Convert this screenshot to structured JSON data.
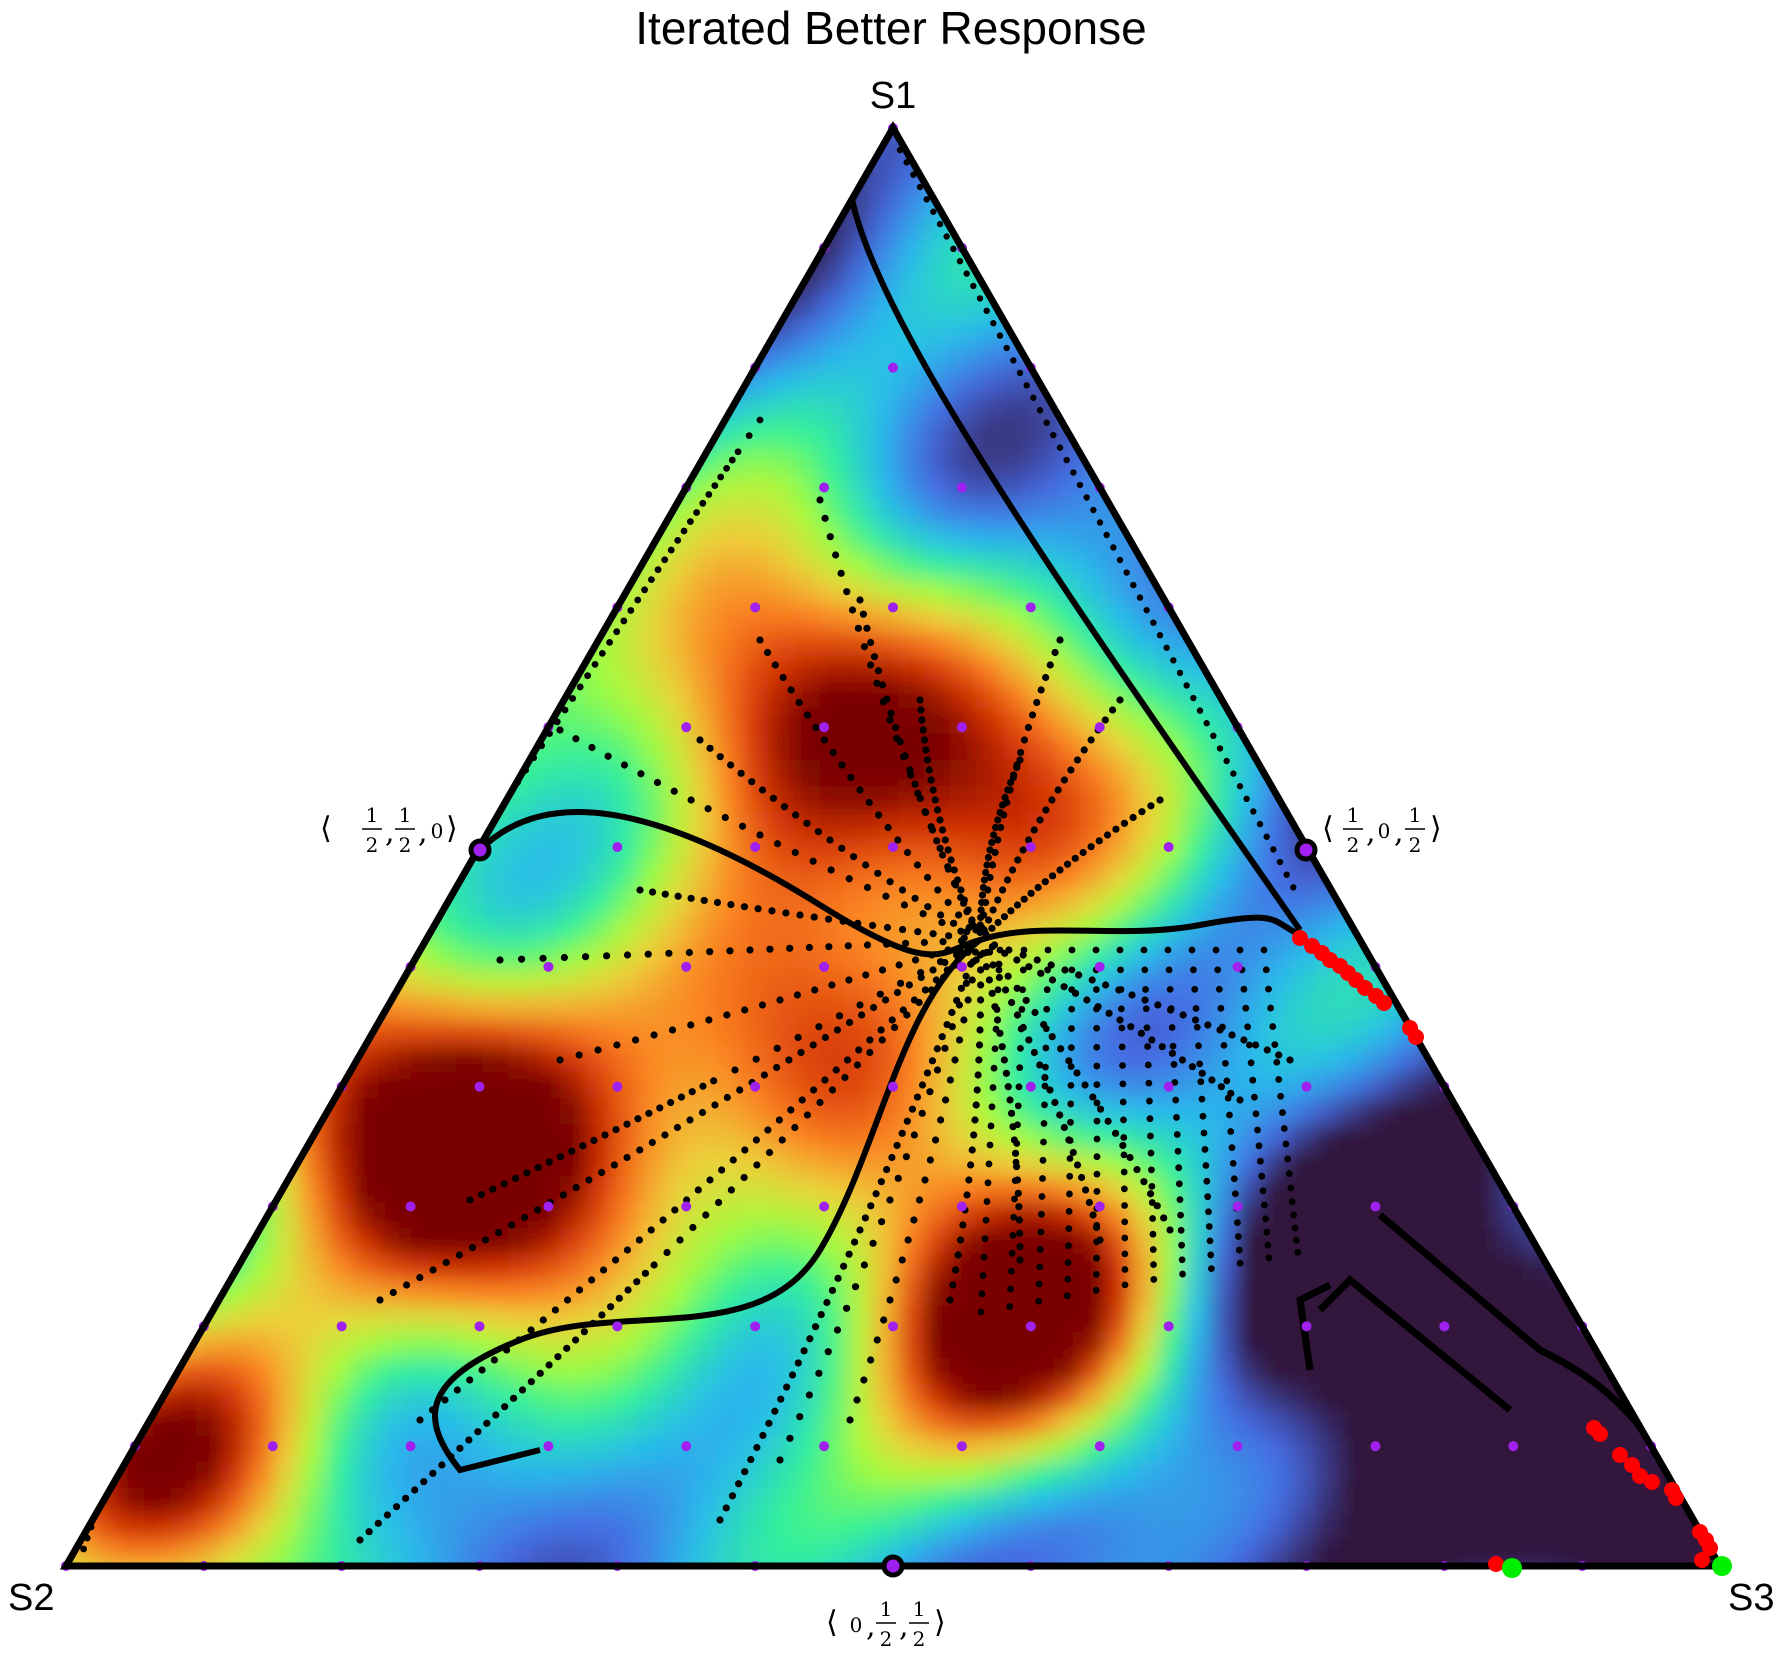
{
  "chart_data": {
    "type": "ternary",
    "title": "Iterated Better Response",
    "vertices": {
      "top": "S1",
      "left": "S2",
      "right": "S3"
    },
    "midpoints": {
      "s1_s2": {
        "text": [
          "1",
          "2",
          "1",
          "2",
          "0"
        ]
      },
      "s1_s3": {
        "text": [
          "1",
          "2",
          "0",
          "1",
          "2"
        ]
      },
      "s2_s3": {
        "text": [
          "0",
          "1",
          "2",
          "1",
          "2"
        ]
      }
    },
    "heatmap": {
      "colormap": "turbo",
      "low_color": "#30123b",
      "high_color": "#7a0403",
      "hotspots_barycentric": [
        {
          "s1": 0.17,
          "s2": 0.34,
          "s3": 0.49,
          "level": 1.0
        },
        {
          "s1": 0.6,
          "s2": 0.27,
          "s3": 0.13,
          "level": 0.8
        },
        {
          "s1": 0.53,
          "s2": 0.16,
          "s3": 0.31,
          "level": 0.6
        },
        {
          "s1": 0.34,
          "s2": 0.64,
          "s3": 0.02,
          "level": 0.75
        },
        {
          "s1": 0.26,
          "s2": 0.58,
          "s3": 0.16,
          "level": 0.7
        },
        {
          "s1": 0.08,
          "s2": 0.89,
          "s3": 0.03,
          "level": 0.72
        },
        {
          "s1": 0.37,
          "s2": 0.36,
          "s3": 0.27,
          "level": 0.55
        }
      ]
    },
    "legend": "none",
    "grid_points": {
      "color": "#a020f0",
      "count_per_edge": 12
    },
    "trajectory_color": "#000000",
    "red_endpoints_color": "#ff0000",
    "green_endpoints_color": "#00ee00"
  }
}
